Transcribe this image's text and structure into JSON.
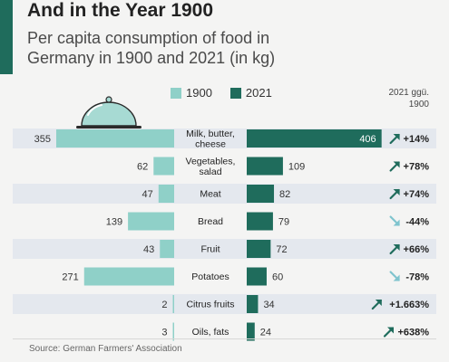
{
  "header": {
    "title": "And in the Year 1900",
    "subtitle": "Per capita consumption of food in Germany in 1900 and 2021 (in kg)"
  },
  "legend": {
    "items": [
      {
        "label": "1900",
        "color": "#8fd0c8"
      },
      {
        "label": "2021",
        "color": "#1f6c5c"
      }
    ],
    "compare_header": "2021 ggü. 1900"
  },
  "colors": {
    "bar_1900": "#8fd0c8",
    "bar_2021": "#1f6c5c",
    "row_band": "#e4e8ee",
    "arrow": "#1f6c5c",
    "arrow_down": "#7fc4ce",
    "accent": "#1f6c5c"
  },
  "icons": [
    "food-cloche-icon",
    "arrow-up-right-icon",
    "arrow-down-right-icon"
  ],
  "chart_data": {
    "type": "bar",
    "orientation": "horizontal-butterfly",
    "categories": [
      "Milk, butter, cheese",
      "Vegetables, salad",
      "Meat",
      "Bread",
      "Fruit",
      "Potatoes",
      "Citrus fruits",
      "Oils, fats"
    ],
    "series": [
      {
        "name": "1900",
        "values": [
          355,
          62,
          47,
          139,
          43,
          271,
          2,
          3
        ]
      },
      {
        "name": "2021",
        "values": [
          406,
          109,
          82,
          79,
          72,
          60,
          34,
          24
        ]
      }
    ],
    "change_labels": [
      "+14%",
      "+78%",
      "+74%",
      "-44%",
      "+66%",
      "-78%",
      "+1.663%",
      "+638%"
    ],
    "change_direction": [
      "up",
      "up",
      "up",
      "down",
      "up",
      "down",
      "up",
      "up"
    ]
  },
  "footer": {
    "source": "Source: German Farmers' Association"
  }
}
